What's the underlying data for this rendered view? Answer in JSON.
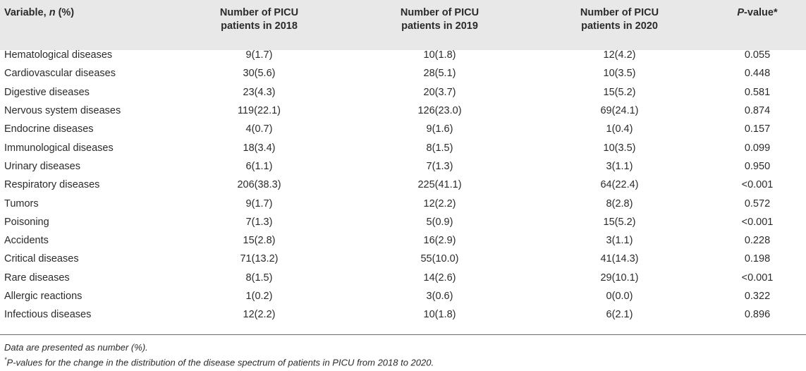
{
  "table": {
    "headers": {
      "variable_prefix": "Variable, ",
      "variable_n": "n",
      "variable_suffix": " (%)",
      "col2018_line1": "Number of PICU",
      "col2018_line2": "patients in 2018",
      "col2019_line1": "Number of PICU",
      "col2019_line2": "patients in 2019",
      "col2020_line1": "Number of PICU",
      "col2020_line2": "patients in 2020",
      "pvalue_italic": "P",
      "pvalue_rest": "-value*"
    },
    "rows": [
      {
        "variable": "Hematological diseases",
        "y2018": "9(1.7)",
        "y2019": "10(1.8)",
        "y2020": "12(4.2)",
        "p": "0.055"
      },
      {
        "variable": "Cardiovascular diseases",
        "y2018": "30(5.6)",
        "y2019": "28(5.1)",
        "y2020": "10(3.5)",
        "p": "0.448"
      },
      {
        "variable": "Digestive diseases",
        "y2018": "23(4.3)",
        "y2019": "20(3.7)",
        "y2020": "15(5.2)",
        "p": "0.581"
      },
      {
        "variable": "Nervous system diseases",
        "y2018": "119(22.1)",
        "y2019": "126(23.0)",
        "y2020": "69(24.1)",
        "p": "0.874"
      },
      {
        "variable": "Endocrine diseases",
        "y2018": "4(0.7)",
        "y2019": "9(1.6)",
        "y2020": "1(0.4)",
        "p": "0.157"
      },
      {
        "variable": "Immunological diseases",
        "y2018": "18(3.4)",
        "y2019": "8(1.5)",
        "y2020": "10(3.5)",
        "p": "0.099"
      },
      {
        "variable": "Urinary diseases",
        "y2018": "6(1.1)",
        "y2019": "7(1.3)",
        "y2020": "3(1.1)",
        "p": "0.950"
      },
      {
        "variable": "Respiratory diseases",
        "y2018": "206(38.3)",
        "y2019": "225(41.1)",
        "y2020": "64(22.4)",
        "p": "<0.001"
      },
      {
        "variable": "Tumors",
        "y2018": "9(1.7)",
        "y2019": "12(2.2)",
        "y2020": "8(2.8)",
        "p": "0.572"
      },
      {
        "variable": "Poisoning",
        "y2018": "7(1.3)",
        "y2019": "5(0.9)",
        "y2020": "15(5.2)",
        "p": "<0.001"
      },
      {
        "variable": "Accidents",
        "y2018": "15(2.8)",
        "y2019": "16(2.9)",
        "y2020": "3(1.1)",
        "p": "0.228"
      },
      {
        "variable": "Critical diseases",
        "y2018": "71(13.2)",
        "y2019": "55(10.0)",
        "y2020": "41(14.3)",
        "p": "0.198"
      },
      {
        "variable": "Rare diseases",
        "y2018": "8(1.5)",
        "y2019": "14(2.6)",
        "y2020": "29(10.1)",
        "p": "<0.001"
      },
      {
        "variable": "Allergic reactions",
        "y2018": "1(0.2)",
        "y2019": "3(0.6)",
        "y2020": "0(0.0)",
        "p": "0.322"
      },
      {
        "variable": "Infectious diseases",
        "y2018": "12(2.2)",
        "y2019": "10(1.8)",
        "y2020": "6(2.1)",
        "p": "0.896"
      }
    ]
  },
  "footnotes": {
    "note1": "Data are presented as number (%).",
    "note2_star": "*",
    "note2_italic": "P",
    "note2_rest": "-values for the change in the distribution of the disease spectrum of patients in PICU from 2018 to 2020."
  },
  "colors": {
    "header_background": "#e8e8e8",
    "rule": "#6a6a6a",
    "text": "#2b2b2b"
  }
}
